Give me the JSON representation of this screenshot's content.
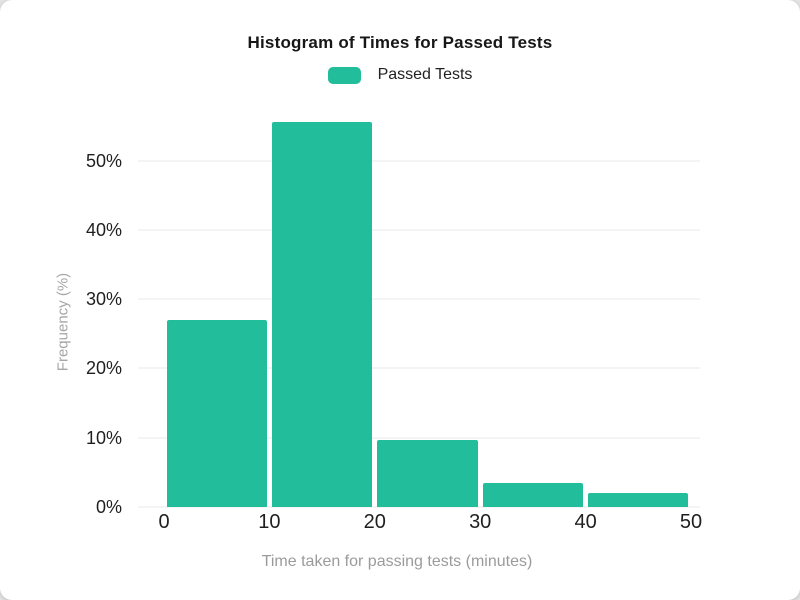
{
  "chart_data": {
    "type": "bar",
    "subtype": "histogram",
    "title": "Histogram of Times for Passed Tests",
    "legend": [
      {
        "label": "Passed Tests",
        "color": "#22be9b"
      }
    ],
    "legend_position": "top",
    "xlabel": "Time taken for passing tests (minutes)",
    "ylabel": "Frequency (%)",
    "bin_edges": [
      0,
      10,
      20,
      30,
      40,
      50
    ],
    "categories": [
      "0-10",
      "10-20",
      "20-30",
      "30-40",
      "40-50"
    ],
    "values": [
      27,
      55.5,
      9.7,
      3.5,
      2
    ],
    "value_unit": "%",
    "x_ticks": [
      "0",
      "10",
      "20",
      "30",
      "40",
      "50"
    ],
    "y_ticks": [
      "0%",
      "10%",
      "20%",
      "30%",
      "40%",
      "50%"
    ],
    "y_tick_values": [
      0,
      10,
      20,
      30,
      40,
      50
    ],
    "ylim": [
      0,
      57.5
    ],
    "grid": "horizontal",
    "colors": {
      "bar": "#22be9b",
      "gridline": "#f4f4f4",
      "tick_text": "#1f1f1f",
      "axis_title_text": "#9e9e9e",
      "title_text": "#171717",
      "card_background": "#ffffff"
    }
  }
}
